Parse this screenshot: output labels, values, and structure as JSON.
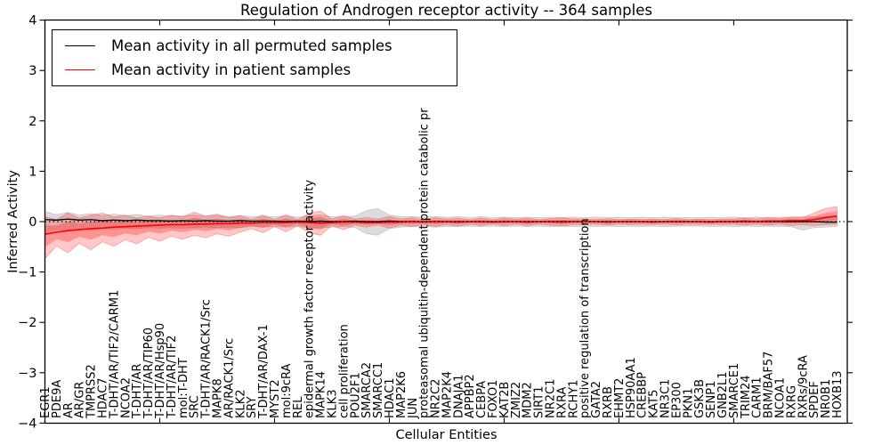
{
  "title": "Regulation of Androgen receptor activity -- 364 samples",
  "axes": {
    "ylabel": "Inferred Activity",
    "xlabel": "Cellular Entities",
    "yticks": [
      "4",
      "3",
      "2",
      "1",
      "0",
      "−1",
      "−2",
      "−3",
      "−4"
    ],
    "ylim": [
      -4,
      4
    ]
  },
  "legend": {
    "position": "upper-left",
    "entries": [
      {
        "label": "Mean activity in all permuted samples",
        "color": "#000000"
      },
      {
        "label": "Mean activity in patient samples",
        "color": "#ff0000"
      }
    ]
  },
  "colors": {
    "permuted_line": "#000000",
    "patient_line": "#ff0000",
    "permuted_band": "#8c8c8c",
    "patient_band": "#ff0000",
    "zero_line": "#000000",
    "frame": "#000000"
  },
  "chart_data": {
    "type": "line",
    "title": "Regulation of Androgen receptor activity -- 364 samples",
    "xlabel": "Cellular Entities",
    "ylabel": "Inferred Activity",
    "ylim": [
      -4,
      4
    ],
    "grid": false,
    "legend_position": "upper-left",
    "zero_line": {
      "y": 0,
      "style": "dotted",
      "color": "#000000"
    },
    "categories": [
      "EGR1",
      "PDE9A",
      "AR",
      "AR/GR",
      "TMPRSS2",
      "HDAC7",
      "T-DHT/AR/TIF2/CARM1",
      "NCOA2",
      "T-DHT/AR",
      "T-DHT/AR/TIP60",
      "T-DHT/AR/Hsp90",
      "T-DHT/AR/TIF2",
      "mol:T-DHT",
      "SRC",
      "T-DHT/AR/RACK1/Src",
      "MAPK8",
      "AR/RACK1/Src",
      "KLK2",
      "SRY",
      "T-DHT/AR/DAX-1",
      "MYST2",
      "mol:9cRA",
      "REL",
      "epidermal growth factor receptor activity",
      "MAPK14",
      "KLK3",
      "cell proliferation",
      "POU2F1",
      "SMARCA2",
      "SMARCC1",
      "HDAC1",
      "MAP2K6",
      "JUN",
      "proteasomal ubiquitin-dependent protein catabolic pr",
      "NR2C2",
      "MAP2K4",
      "DNAJA1",
      "APPBP2",
      "CEBPA",
      "FOXO1",
      "KAT2B",
      "ZMIZ2",
      "MDM2",
      "SIRT1",
      "NR2C1",
      "RXRA",
      "RCHY1",
      "positive regulation of transcription",
      "GATA2",
      "RXRB",
      "EHMT2",
      "HSP90AA1",
      "CREBBP",
      "KAT5",
      "NR3C1",
      "EP300",
      "PKN1",
      "GSK3B",
      "SENP1",
      "GNB2L1",
      "SMARCE1",
      "TRIM24",
      "CARM1",
      "BRM/BAF57",
      "NCOA1",
      "RXRG",
      "RXRs/9cRA",
      "SPDEF",
      "NR0B1",
      "HOXB13"
    ],
    "series": [
      {
        "name": "Mean activity in all permuted samples",
        "color": "#000000",
        "style": "solid",
        "values": [
          0.04,
          0.03,
          0.05,
          0.03,
          0.04,
          0.02,
          0.03,
          0.02,
          0.03,
          0.02,
          0.02,
          0.01,
          0.02,
          0.01,
          0.02,
          0.01,
          0.01,
          0.02,
          0.01,
          0.01,
          0.01,
          0.0,
          0.01,
          0.0,
          0.01,
          0.0,
          0.0,
          0.01,
          0.0,
          0.0,
          0.01,
          0.0,
          0.0,
          0.0,
          0.0,
          0.0,
          0.0,
          0.0,
          0.0,
          0.0,
          0.0,
          0.0,
          0.0,
          0.0,
          0.0,
          0.0,
          0.0,
          0.0,
          0.0,
          0.0,
          0.0,
          0.0,
          0.0,
          0.0,
          0.0,
          0.0,
          0.0,
          0.0,
          0.0,
          0.0,
          0.0,
          0.0,
          0.0,
          0.0,
          0.0,
          0.0,
          0.0,
          0.0,
          -0.01,
          -0.01
        ]
      },
      {
        "name": "Mean activity in patient samples",
        "color": "#ff0000",
        "style": "solid",
        "values": [
          -0.25,
          -0.21,
          -0.18,
          -0.16,
          -0.14,
          -0.13,
          -0.11,
          -0.1,
          -0.09,
          -0.08,
          -0.07,
          -0.06,
          -0.06,
          -0.05,
          -0.05,
          -0.04,
          -0.04,
          -0.03,
          -0.03,
          -0.02,
          -0.02,
          -0.02,
          -0.01,
          -0.02,
          -0.03,
          -0.02,
          -0.01,
          -0.01,
          -0.02,
          -0.02,
          -0.01,
          -0.01,
          0.0,
          -0.01,
          0.0,
          0.0,
          -0.01,
          0.0,
          0.0,
          -0.01,
          0.0,
          0.0,
          -0.01,
          0.0,
          0.0,
          -0.01,
          0.0,
          0.0,
          0.0,
          -0.01,
          0.0,
          0.0,
          0.0,
          -0.01,
          0.0,
          0.0,
          0.0,
          0.0,
          -0.01,
          0.0,
          0.0,
          0.01,
          0.0,
          0.01,
          0.01,
          0.02,
          0.02,
          0.04,
          0.08,
          0.11
        ]
      }
    ],
    "bands": [
      {
        "name": "permuted samples range",
        "color": "#8c8c8c",
        "opacity": 0.3,
        "upper": [
          0.2,
          0.14,
          0.18,
          0.13,
          0.16,
          0.12,
          0.15,
          0.12,
          0.14,
          0.11,
          0.13,
          0.11,
          0.12,
          0.13,
          0.11,
          0.12,
          0.1,
          0.12,
          0.1,
          0.11,
          0.1,
          0.11,
          0.09,
          0.12,
          0.13,
          0.1,
          0.1,
          0.11,
          0.22,
          0.26,
          0.13,
          0.1,
          0.1,
          0.09,
          0.1,
          0.09,
          0.1,
          0.08,
          0.1,
          0.08,
          0.09,
          0.08,
          0.09,
          0.08,
          0.09,
          0.08,
          0.09,
          0.08,
          0.09,
          0.08,
          0.09,
          0.08,
          0.09,
          0.08,
          0.09,
          0.08,
          0.08,
          0.08,
          0.09,
          0.08,
          0.09,
          0.08,
          0.09,
          0.08,
          0.09,
          0.09,
          0.1,
          0.09,
          0.1,
          0.09
        ],
        "lower": [
          -0.22,
          -0.15,
          -0.19,
          -0.14,
          -0.17,
          -0.13,
          -0.15,
          -0.13,
          -0.14,
          -0.12,
          -0.13,
          -0.12,
          -0.13,
          -0.12,
          -0.11,
          -0.12,
          -0.11,
          -0.12,
          -0.1,
          -0.11,
          -0.1,
          -0.11,
          -0.1,
          -0.12,
          -0.13,
          -0.11,
          -0.1,
          -0.12,
          -0.24,
          -0.27,
          -0.14,
          -0.11,
          -0.1,
          -0.1,
          -0.11,
          -0.1,
          -0.1,
          -0.09,
          -0.1,
          -0.09,
          -0.1,
          -0.09,
          -0.1,
          -0.09,
          -0.1,
          -0.09,
          -0.1,
          -0.09,
          -0.1,
          -0.09,
          -0.1,
          -0.09,
          -0.1,
          -0.09,
          -0.1,
          -0.09,
          -0.09,
          -0.09,
          -0.1,
          -0.09,
          -0.1,
          -0.09,
          -0.1,
          -0.09,
          -0.1,
          -0.1,
          -0.17,
          -0.12,
          -0.11,
          -0.1
        ]
      },
      {
        "name": "patient samples range",
        "color": "#ff0000",
        "opacity": 0.22,
        "upper": [
          0.1,
          0.04,
          0.17,
          0.07,
          0.13,
          0.17,
          0.09,
          0.13,
          0.07,
          0.11,
          0.07,
          0.13,
          0.09,
          0.19,
          0.11,
          0.15,
          0.08,
          0.12,
          0.04,
          0.13,
          0.04,
          0.14,
          0.04,
          0.16,
          0.21,
          0.05,
          0.12,
          0.05,
          0.08,
          0.05,
          0.1,
          0.05,
          0.08,
          0.04,
          0.08,
          0.05,
          0.07,
          0.04,
          0.07,
          0.04,
          0.07,
          0.05,
          0.07,
          0.04,
          0.06,
          0.08,
          0.05,
          0.05,
          0.04,
          0.06,
          0.04,
          0.05,
          0.04,
          0.05,
          0.04,
          0.06,
          0.04,
          0.05,
          0.04,
          0.05,
          0.05,
          0.07,
          0.05,
          0.08,
          0.06,
          0.09,
          0.08,
          0.17,
          0.26,
          0.3
        ],
        "lower": [
          -0.74,
          -0.48,
          -0.62,
          -0.43,
          -0.56,
          -0.4,
          -0.49,
          -0.36,
          -0.44,
          -0.31,
          -0.39,
          -0.29,
          -0.35,
          -0.27,
          -0.32,
          -0.24,
          -0.29,
          -0.21,
          -0.14,
          -0.22,
          -0.1,
          -0.2,
          -0.08,
          -0.22,
          -0.27,
          -0.08,
          -0.16,
          -0.07,
          -0.11,
          -0.07,
          -0.13,
          -0.07,
          -0.1,
          -0.06,
          -0.1,
          -0.06,
          -0.09,
          -0.05,
          -0.08,
          -0.05,
          -0.08,
          -0.05,
          -0.08,
          -0.05,
          -0.07,
          -0.09,
          -0.06,
          -0.06,
          -0.05,
          -0.07,
          -0.05,
          -0.06,
          -0.05,
          -0.06,
          -0.05,
          -0.07,
          -0.05,
          -0.06,
          -0.05,
          -0.06,
          -0.05,
          -0.07,
          -0.05,
          -0.07,
          -0.05,
          -0.08,
          -0.06,
          -0.08,
          -0.06,
          -0.05
        ]
      }
    ]
  }
}
